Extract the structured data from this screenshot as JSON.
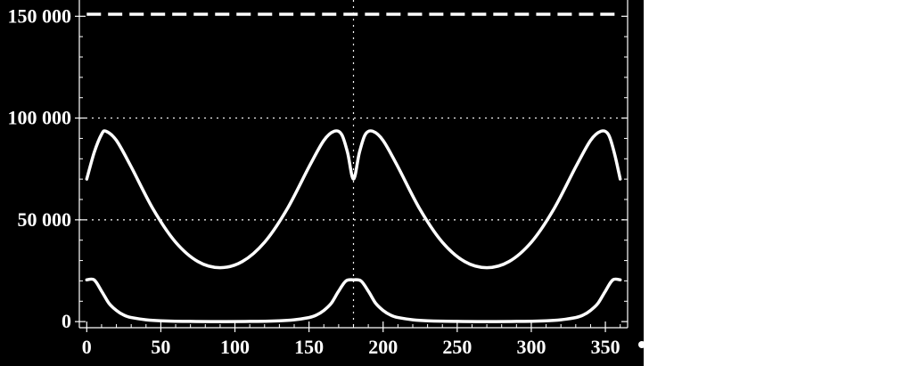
{
  "chart_data": {
    "type": "line",
    "title": "",
    "xlabel": "",
    "ylabel": "",
    "xlim": [
      -5,
      365
    ],
    "ylim": [
      -3000,
      158000
    ],
    "x_ticks": [
      0,
      50,
      100,
      150,
      200,
      250,
      300,
      350
    ],
    "x_tick_labels": [
      "0",
      "50",
      "100",
      "150",
      "200",
      "250",
      "300",
      "350"
    ],
    "y_ticks": [
      0,
      50000,
      100000,
      150000
    ],
    "y_tick_labels": [
      "0",
      "50 000",
      "100 000",
      "150 000"
    ],
    "grid": {
      "horizontal_dotted_at": [
        50000,
        100000
      ],
      "vertical_dotted_at": [
        180
      ]
    },
    "background": "#000000",
    "foreground": "#ffffff",
    "series": [
      {
        "style": "dashed",
        "x": [
          0,
          360
        ],
        "y": [
          151000,
          151000
        ]
      },
      {
        "style": "solid",
        "x": [
          0,
          5,
          10,
          13,
          20,
          30,
          45,
          60,
          75,
          90,
          105,
          120,
          135,
          150,
          160,
          167,
          172,
          176,
          180,
          184,
          188,
          193,
          200,
          210,
          225,
          240,
          255,
          270,
          285,
          300,
          315,
          330,
          340,
          347,
          352,
          356,
          360
        ],
        "y": [
          70000,
          83000,
          92000,
          93500,
          89000,
          76000,
          55000,
          39000,
          29500,
          26500,
          29500,
          39000,
          55000,
          76000,
          89000,
          93500,
          92000,
          83000,
          70000,
          83000,
          92000,
          93500,
          89000,
          76000,
          55000,
          39000,
          29500,
          26500,
          29500,
          39000,
          55000,
          76000,
          89000,
          93500,
          92000,
          83000,
          70000
        ]
      },
      {
        "style": "solid",
        "x": [
          0,
          5,
          10,
          15,
          20,
          25,
          30,
          40,
          50,
          70,
          90,
          110,
          130,
          140,
          150,
          155,
          160,
          165,
          170,
          175,
          180,
          185,
          190,
          195,
          200,
          205,
          210,
          220,
          230,
          250,
          270,
          290,
          310,
          320,
          330,
          335,
          340,
          345,
          350,
          355,
          360
        ],
        "y": [
          20500,
          20500,
          15000,
          9000,
          5500,
          3200,
          2000,
          900,
          400,
          100,
          0,
          100,
          400,
          900,
          2000,
          3200,
          5500,
          9000,
          15000,
          20000,
          20500,
          20000,
          15000,
          9000,
          5500,
          3200,
          2000,
          900,
          400,
          100,
          0,
          100,
          400,
          900,
          2000,
          3200,
          5500,
          9000,
          15000,
          20500,
          20500
        ]
      }
    ]
  }
}
